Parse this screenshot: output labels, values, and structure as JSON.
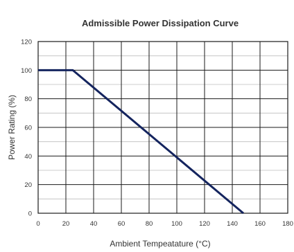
{
  "chart_data": {
    "type": "line",
    "title": "Admissible Power Dissipation Curve",
    "xlabel": "Ambient Tempeatature (°C)",
    "ylabel": "Power Rating (%)",
    "xlim": [
      0,
      180
    ],
    "ylim": [
      0,
      120
    ],
    "x_ticks": [
      "0",
      "20",
      "40",
      "60",
      "80",
      "100",
      "120",
      "140",
      "160",
      "180"
    ],
    "y_ticks": [
      "0",
      "20",
      "40",
      "60",
      "80",
      "100",
      "120"
    ],
    "grid": true,
    "series": [
      {
        "x": [
          0,
          25,
          148
        ],
        "y": [
          100,
          100,
          0
        ]
      }
    ],
    "colors": {
      "line": "#14245e",
      "grid": "#1a1a1a",
      "text": "#333333"
    }
  }
}
